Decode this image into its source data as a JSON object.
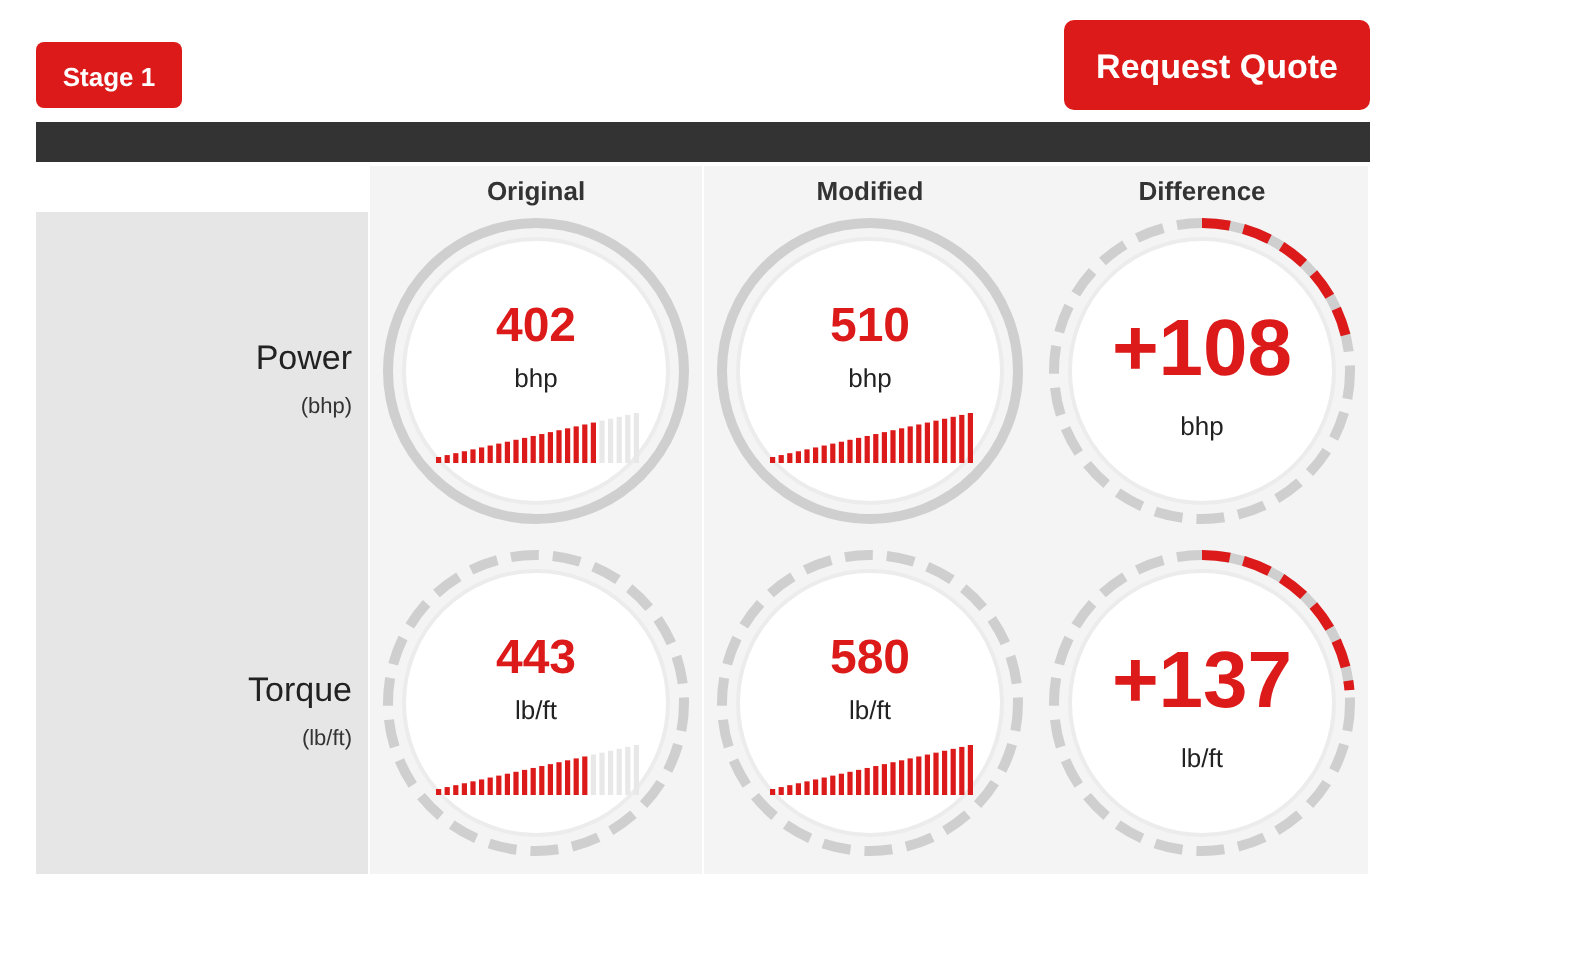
{
  "chart_data": {
    "type": "other",
    "title": "Stage 1",
    "annotations": [
      "Request Quote",
      "bhp",
      "lb/ft"
    ],
    "categories": [
      "Original",
      "Modified",
      "Difference"
    ],
    "series": [
      {
        "name": "Power (bhp)",
        "values": [
          402,
          510,
          108
        ],
        "value_labels": [
          "402",
          "510",
          "+108"
        ]
      },
      {
        "name": "Torque (lb/ft)",
        "values": [
          443,
          580,
          137
        ],
        "value_labels": [
          "443",
          "580",
          "+137"
        ]
      }
    ]
  }
}
